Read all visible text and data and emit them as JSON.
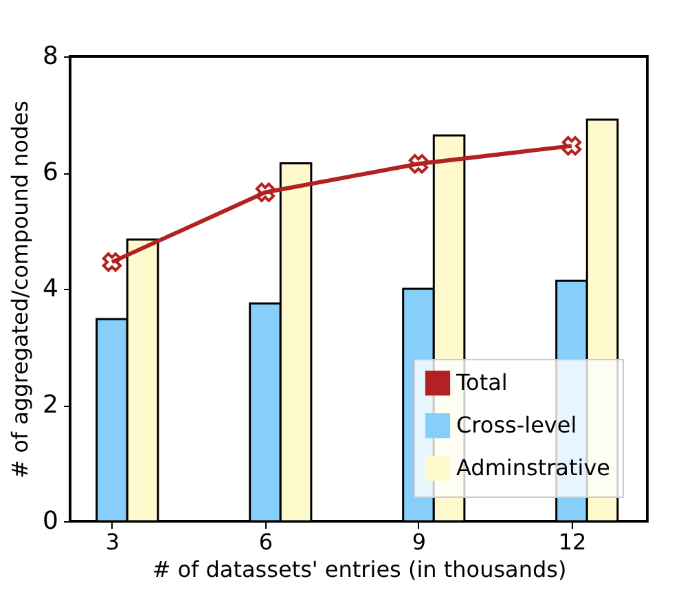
{
  "chart_data": {
    "type": "bar",
    "xlabel": "# of datassets' entries (in thousands)",
    "ylabel": "# of aggregated/compound nodes",
    "x": [
      3,
      6,
      9,
      12
    ],
    "xlim": [
      2.18,
      13.48
    ],
    "xticks": [
      3,
      6,
      9,
      12
    ],
    "ylim": [
      0,
      8
    ],
    "yticks": [
      0,
      2,
      4,
      6,
      8
    ],
    "grid": false,
    "legend": "bottom right",
    "series": [
      {
        "name": "Total",
        "type": "line",
        "color": "#b22222",
        "marker": "cross",
        "values": [
          4.46,
          5.66,
          6.15,
          6.46
        ]
      },
      {
        "name": "Cross-level",
        "color": "#87cefa",
        "values": [
          3.48,
          3.75,
          4.0,
          4.14
        ]
      },
      {
        "name": "Adminstrative",
        "color": "#fffacd",
        "values": [
          4.85,
          6.16,
          6.64,
          6.91
        ]
      }
    ]
  }
}
